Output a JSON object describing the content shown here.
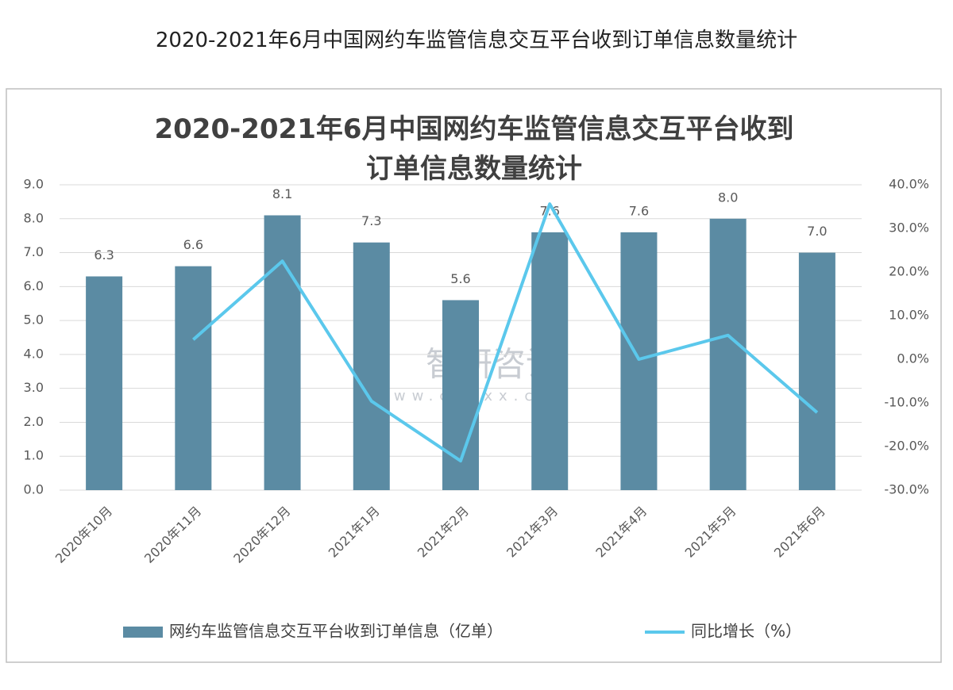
{
  "heading": "2020-2021年6月中国网约车监管信息交互平台收到订单信息数量统计",
  "chart_data": {
    "type": "bar",
    "title": "2020-2021年6月中国网约车监管信息交互平台收到订单信息数量统计",
    "categories": [
      "2020年10月",
      "2020年11月",
      "2020年12月",
      "2021年1月",
      "2021年2月",
      "2021年3月",
      "2021年4月",
      "2021年5月",
      "2021年6月"
    ],
    "series": [
      {
        "name": "网约车监管信息交互平台收到订单信息（亿单）",
        "type": "bar",
        "color": "#5b8ba3",
        "values": [
          6.3,
          6.6,
          8.1,
          7.3,
          5.6,
          7.6,
          7.6,
          8.0,
          7.0
        ],
        "value_labels": [
          "6.3",
          "6.6",
          "8.1",
          "7.3",
          "5.6",
          "7.6",
          "7.6",
          "8.0",
          "7.0"
        ]
      },
      {
        "name": "同比增长（%）",
        "type": "line",
        "axis": "y2",
        "color": "#5bc8ec",
        "values": [
          null,
          4.5,
          22.5,
          -9.6,
          -23.3,
          35.6,
          0,
          5.5,
          -12.2
        ]
      }
    ],
    "ylim": [
      0,
      9
    ],
    "yticks": [
      {
        "value": 0,
        "label": "0.0"
      },
      {
        "value": 1,
        "label": "1.0"
      },
      {
        "value": 2,
        "label": "2.0"
      },
      {
        "value": 3,
        "label": "3.0"
      },
      {
        "value": 4,
        "label": "4.0"
      },
      {
        "value": 5,
        "label": "5.0"
      },
      {
        "value": 6,
        "label": "6.0"
      },
      {
        "value": 7,
        "label": "7.0"
      },
      {
        "value": 8,
        "label": "8.0"
      },
      {
        "value": 9,
        "label": "9.0"
      }
    ],
    "y2lim": [
      -30,
      40
    ],
    "y2ticks": [
      {
        "value": -30,
        "label": "-30.0%"
      },
      {
        "value": -20,
        "label": "-20.0%"
      },
      {
        "value": -10,
        "label": "-10.0%"
      },
      {
        "value": 0,
        "label": "0.0%"
      },
      {
        "value": 10,
        "label": "10.0%"
      },
      {
        "value": 20,
        "label": "20.0%"
      },
      {
        "value": 30,
        "label": "30.0%"
      },
      {
        "value": 40,
        "label": "40.0%"
      }
    ],
    "grid": true,
    "legend": "bottom",
    "watermark": {
      "text": "智研咨询",
      "url": "www.chyxx.com"
    }
  }
}
